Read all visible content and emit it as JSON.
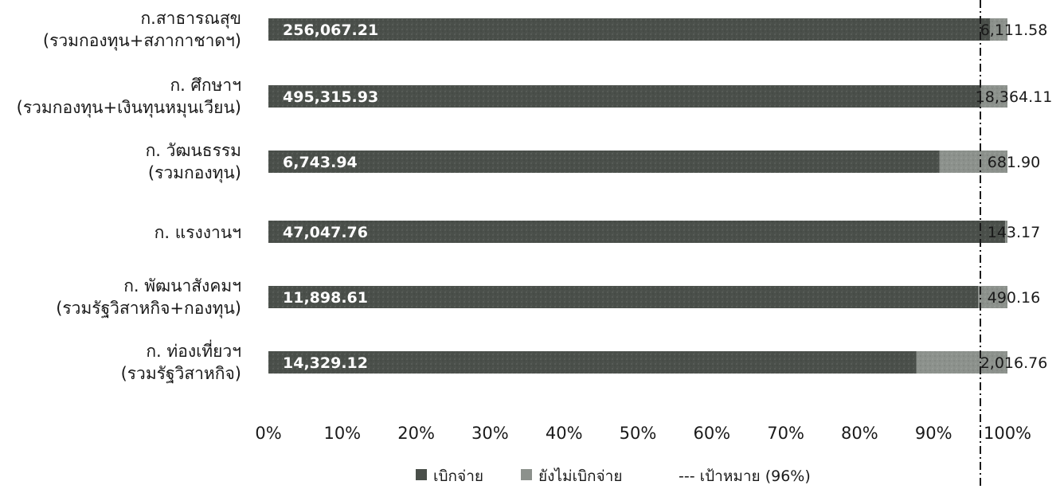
{
  "chart_data": {
    "type": "bar",
    "orientation": "horizontal",
    "stacked": "percent",
    "categories": [
      [
        "ก.สาธารณสุข",
        "(รวมกองทุน+สภากาชาดฯ)"
      ],
      [
        "ก. ศึกษาฯ",
        "(รวมกองทุน+เงินทุนหมุนเวียน)"
      ],
      [
        "ก. วัฒนธรรม",
        "(รวมกองทุน)"
      ],
      [
        "ก. แรงงานฯ"
      ],
      [
        "ก. พัฒนาสังคมฯ",
        "(รวมรัฐวิสาหกิจ+กองทุน)"
      ],
      [
        "ก. ท่องเที่ยวฯ",
        "(รวมรัฐวิสาหกิจ)"
      ]
    ],
    "series": [
      {
        "name": "เบิกจ่าย",
        "values": [
          256067.21,
          495315.93,
          6743.94,
          47047.76,
          11898.61,
          14329.12
        ],
        "labels": [
          "256,067.21",
          "495,315.93",
          "6,743.94",
          "47,047.76",
          "11,898.61",
          "14,329.12"
        ],
        "color": "#4a4f4a"
      },
      {
        "name": "ยังไม่เบิกจ่าย",
        "values": [
          6111.58,
          18364.11,
          681.9,
          143.17,
          490.16,
          2016.76
        ],
        "labels": [
          "6,111.58",
          "18,364.11",
          "681.90",
          "143.17",
          "490.16",
          "2,016.76"
        ],
        "color": "#8c918c"
      }
    ],
    "target": {
      "label": "--- เป้าหมาย (96%)",
      "value": 96
    },
    "x_ticks": [
      "0%",
      "10%",
      "20%",
      "30%",
      "40%",
      "50%",
      "60%",
      "70%",
      "80%",
      "90%",
      "100%"
    ],
    "xlim": [
      0,
      100
    ],
    "legend_position": "bottom",
    "grid": false
  }
}
